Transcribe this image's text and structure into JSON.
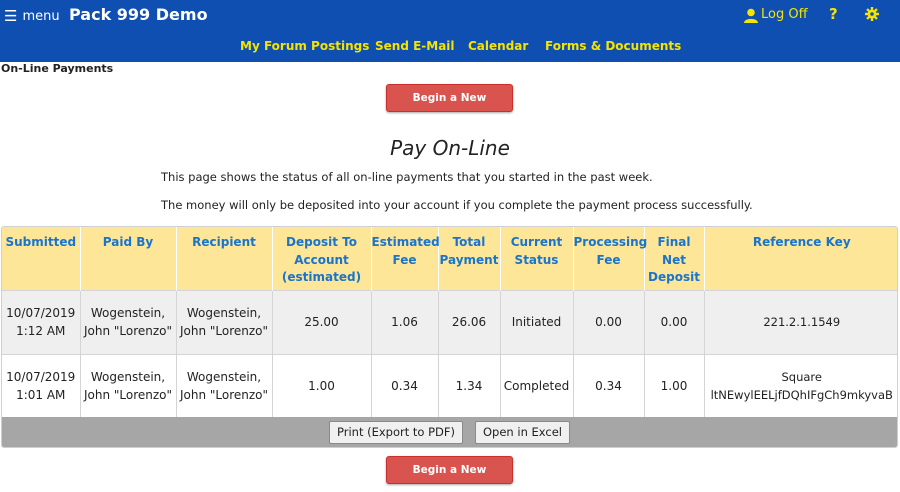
{
  "header": {
    "menu_label": "menu",
    "site_title": "Pack 999 Demo",
    "logoff_label": "Log Off",
    "help_label": "?",
    "nav": [
      "My Forum Postings",
      "Send E-Mail",
      "Calendar",
      "Forms & Documents"
    ]
  },
  "page_label": "On-Line Payments",
  "begin_payment_label": "Begin a New Payment",
  "heading": "Pay On-Line",
  "info": [
    "This page shows the status of all on-line payments that you started in the past week.",
    "The money will only be deposited into your account if you complete the payment process successfully."
  ],
  "table": {
    "columns": [
      "Submitted",
      "Paid By",
      "Recipient",
      "Deposit To Account (estimated)",
      "Estimated Fee",
      "Total Payment",
      "Current Status",
      "Processing Fee",
      "Final Net Deposit",
      "Reference Key"
    ],
    "rows": [
      [
        "10/07/2019 1:12 AM",
        "Wogenstein, John \"Lorenzo\"",
        "Wogenstein, John \"Lorenzo\"",
        "25.00",
        "1.06",
        "26.06",
        "Initiated",
        "0.00",
        "0.00",
        "221.2.1.1549"
      ],
      [
        "10/07/2019 1:01 AM",
        "Wogenstein, John \"Lorenzo\"",
        "Wogenstein, John \"Lorenzo\"",
        "1.00",
        "0.34",
        "1.34",
        "Completed",
        "0.34",
        "1.00",
        "Square ltNEwylEELjfDQhIFgCh9mkyvaB"
      ]
    ]
  },
  "footer": {
    "print_label": "Print (Export to PDF)",
    "excel_label": "Open in Excel"
  },
  "colors": {
    "brand": "#0f4fb1",
    "nav_text": "#f5e300",
    "header_row": "#fde698",
    "header_text": "#1874cd",
    "action_button": "#d9534f"
  }
}
